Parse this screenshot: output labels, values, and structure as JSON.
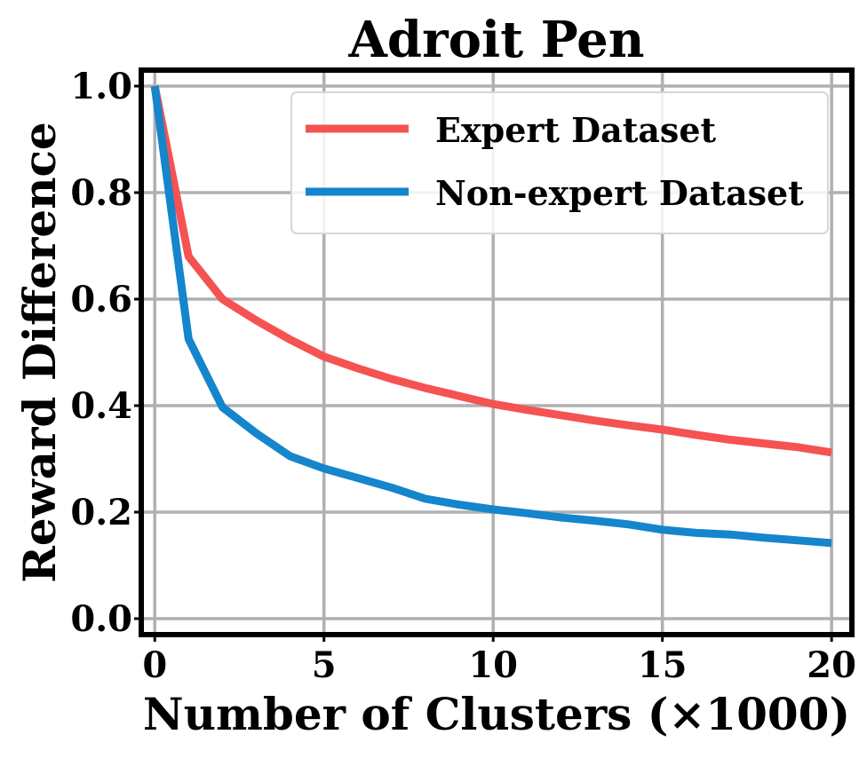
{
  "chart_data": {
    "type": "line",
    "title": "Adroit Pen",
    "xlabel": "Number of Clusters (×1000)",
    "ylabel": "Reward Difference",
    "xlim": [
      -0.4,
      20.6
    ],
    "ylim": [
      -0.03,
      1.03
    ],
    "xticks": [
      0,
      5,
      10,
      15,
      20
    ],
    "xtick_labels": [
      "0",
      "5",
      "10",
      "15",
      "20"
    ],
    "yticks": [
      0.0,
      0.2,
      0.4,
      0.6,
      0.8,
      1.0
    ],
    "ytick_labels": [
      "0.0",
      "0.2",
      "0.4",
      "0.6",
      "0.8",
      "1.0"
    ],
    "grid": true,
    "legend_position": "top-right",
    "series": [
      {
        "name": "Expert Dataset",
        "color": "#f55252",
        "x": [
          0,
          1,
          2,
          3,
          4,
          5,
          6,
          7,
          8,
          9,
          10,
          11,
          12,
          13,
          14,
          15,
          16,
          17,
          18,
          19,
          20
        ],
        "y": [
          1.0,
          0.68,
          0.6,
          0.56,
          0.524,
          0.492,
          0.47,
          0.45,
          0.433,
          0.418,
          0.403,
          0.392,
          0.382,
          0.372,
          0.363,
          0.355,
          0.345,
          0.336,
          0.329,
          0.322,
          0.312
        ]
      },
      {
        "name": "Non-expert Dataset",
        "color": "#1585cc",
        "x": [
          0,
          1,
          2,
          3,
          4,
          5,
          6,
          7,
          8,
          9,
          10,
          11,
          12,
          13,
          14,
          15,
          16,
          17,
          18,
          19,
          20
        ],
        "y": [
          1.0,
          0.525,
          0.397,
          0.348,
          0.305,
          0.282,
          0.264,
          0.246,
          0.225,
          0.214,
          0.205,
          0.198,
          0.19,
          0.184,
          0.177,
          0.167,
          0.161,
          0.158,
          0.152,
          0.147,
          0.142
        ]
      }
    ]
  }
}
